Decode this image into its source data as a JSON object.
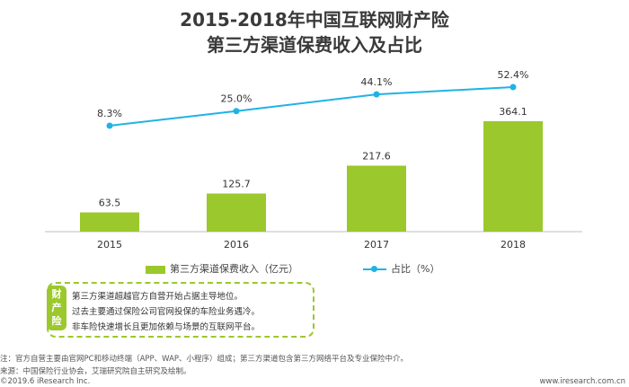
{
  "chart_data": {
    "type": "bar",
    "title": "2015-2018年中国互联网财产险",
    "subtitle": "第三方渠道保费收入及占比",
    "categories": [
      "2015",
      "2016",
      "2017",
      "2018"
    ],
    "series": [
      {
        "name": "第三方渠道保费收入（亿元）",
        "type": "bar",
        "values": [
          63.5,
          125.7,
          217.6,
          364.1
        ],
        "labels": [
          "63.5",
          "125.7",
          "217.6",
          "364.1"
        ]
      },
      {
        "name": "占比（%）",
        "type": "line",
        "values": [
          8.3,
          25.0,
          44.1,
          52.4
        ],
        "labels": [
          "8.3%",
          "25.0%",
          "44.1%",
          "52.4%"
        ]
      }
    ],
    "bar_ylim": [
      0,
      400
    ],
    "line_ylim": [
      0,
      60
    ],
    "colors": {
      "bar": "#9bc82d",
      "line": "#1fb3e5"
    }
  },
  "note": {
    "tab": "财\n产\n险",
    "lines": [
      "第三方渠道超越官方自营开始占据主导地位。",
      "过去主要通过保险公司官网投保的车险业务遇冷。",
      "非车险快速增长且更加依赖与场景的互联网平台。"
    ]
  },
  "footer": {
    "note": "注：官方自营主要由官网PC和移动终端（APP、WAP、小程序）组成；第三方渠道包含第三方网络平台及专业保险中介。",
    "source": "来源：中国保险行业协会，艾瑞研究院自主研究及绘制。",
    "copyright": "©2019.6 iResearch Inc.",
    "website": "www.iresearch.com.cn"
  }
}
